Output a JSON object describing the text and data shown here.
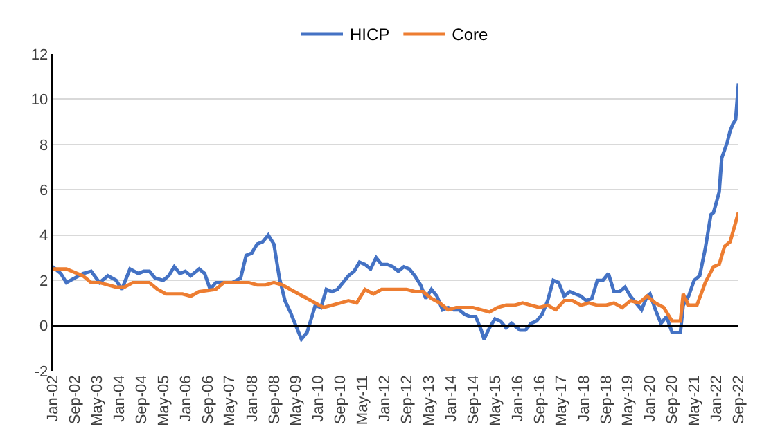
{
  "chart_data": {
    "type": "line",
    "xlim": [
      "2002-01",
      "2022-09"
    ],
    "xticks": [
      {
        "value": "2002-01",
        "label": "Jan-02"
      },
      {
        "value": "2002-09",
        "label": "Sep-02"
      },
      {
        "value": "2003-05",
        "label": "May-03"
      },
      {
        "value": "2004-01",
        "label": "Jan-04"
      },
      {
        "value": "2004-09",
        "label": "Sep-04"
      },
      {
        "value": "2005-05",
        "label": "May-05"
      },
      {
        "value": "2006-01",
        "label": "Jan-06"
      },
      {
        "value": "2006-09",
        "label": "Sep-06"
      },
      {
        "value": "2007-05",
        "label": "May-07"
      },
      {
        "value": "2008-01",
        "label": "Jan-08"
      },
      {
        "value": "2008-09",
        "label": "Sep-08"
      },
      {
        "value": "2009-05",
        "label": "May-09"
      },
      {
        "value": "2010-01",
        "label": "Jan-10"
      },
      {
        "value": "2010-09",
        "label": "Sep-10"
      },
      {
        "value": "2011-05",
        "label": "May-11"
      },
      {
        "value": "2012-01",
        "label": "Jan-12"
      },
      {
        "value": "2012-09",
        "label": "Sep-12"
      },
      {
        "value": "2013-05",
        "label": "May-13"
      },
      {
        "value": "2014-01",
        "label": "Jan-14"
      },
      {
        "value": "2014-09",
        "label": "Sep-14"
      },
      {
        "value": "2015-05",
        "label": "May-15"
      },
      {
        "value": "2016-01",
        "label": "Jan-16"
      },
      {
        "value": "2016-09",
        "label": "Sep-16"
      },
      {
        "value": "2017-05",
        "label": "May-17"
      },
      {
        "value": "2018-01",
        "label": "Jan-18"
      },
      {
        "value": "2018-09",
        "label": "Sep-18"
      },
      {
        "value": "2019-05",
        "label": "May-19"
      },
      {
        "value": "2020-01",
        "label": "Jan-20"
      },
      {
        "value": "2020-09",
        "label": "Sep-20"
      },
      {
        "value": "2021-05",
        "label": "May-21"
      },
      {
        "value": "2022-01",
        "label": "Jan-22"
      },
      {
        "value": "2022-09",
        "label": "Sep-22"
      }
    ],
    "ylim": [
      -2,
      12
    ],
    "yticks": [
      -2,
      0,
      2,
      4,
      6,
      8,
      10,
      12
    ],
    "grid": "y",
    "legend": "top",
    "marker": "none",
    "line_style": "solid",
    "ref_lines": [
      {
        "axis": "y",
        "value": 0,
        "color": "#000000"
      }
    ],
    "series": [
      {
        "name": "HICP",
        "color": "#4472c4",
        "x": [
          "2002-01",
          "2002-04",
          "2002-06",
          "2002-09",
          "2002-12",
          "2003-03",
          "2003-06",
          "2003-09",
          "2003-12",
          "2004-02",
          "2004-05",
          "2004-08",
          "2004-10",
          "2004-12",
          "2005-02",
          "2005-05",
          "2005-07",
          "2005-09",
          "2005-11",
          "2006-01",
          "2006-03",
          "2006-06",
          "2006-08",
          "2006-10",
          "2006-12",
          "2007-03",
          "2007-06",
          "2007-09",
          "2007-11",
          "2008-01",
          "2008-03",
          "2008-05",
          "2008-07",
          "2008-09",
          "2008-11",
          "2009-01",
          "2009-03",
          "2009-05",
          "2009-07",
          "2009-09",
          "2009-11",
          "2009-12",
          "2010-02",
          "2010-04",
          "2010-06",
          "2010-08",
          "2010-10",
          "2010-12",
          "2011-02",
          "2011-04",
          "2011-06",
          "2011-08",
          "2011-10",
          "2011-12",
          "2012-02",
          "2012-04",
          "2012-06",
          "2012-08",
          "2012-10",
          "2012-12",
          "2013-02",
          "2013-04",
          "2013-06",
          "2013-08",
          "2013-10",
          "2013-12",
          "2014-02",
          "2014-04",
          "2014-06",
          "2014-08",
          "2014-10",
          "2014-12",
          "2015-01",
          "2015-03",
          "2015-05",
          "2015-07",
          "2015-09",
          "2015-11",
          "2016-02",
          "2016-04",
          "2016-06",
          "2016-08",
          "2016-10",
          "2016-12",
          "2017-02",
          "2017-04",
          "2017-06",
          "2017-08",
          "2017-10",
          "2017-12",
          "2018-02",
          "2018-04",
          "2018-06",
          "2018-08",
          "2018-10",
          "2018-12",
          "2019-02",
          "2019-04",
          "2019-06",
          "2019-08",
          "2019-10",
          "2019-12",
          "2020-01",
          "2020-03",
          "2020-05",
          "2020-07",
          "2020-09",
          "2020-12",
          "2021-01",
          "2021-03",
          "2021-05",
          "2021-07",
          "2021-09",
          "2021-11",
          "2021-12",
          "2022-02",
          "2022-03",
          "2022-05",
          "2022-06",
          "2022-07",
          "2022-08",
          "2022-09"
        ],
        "values": [
          2.6,
          2.3,
          1.9,
          2.1,
          2.3,
          2.4,
          1.9,
          2.2,
          2.0,
          1.6,
          2.5,
          2.3,
          2.4,
          2.4,
          2.1,
          2.0,
          2.2,
          2.6,
          2.3,
          2.4,
          2.2,
          2.5,
          2.3,
          1.6,
          1.9,
          1.9,
          1.9,
          2.1,
          3.1,
          3.2,
          3.6,
          3.7,
          4.0,
          3.6,
          2.1,
          1.1,
          0.6,
          0.0,
          -0.6,
          -0.3,
          0.5,
          0.9,
          0.8,
          1.6,
          1.5,
          1.6,
          1.9,
          2.2,
          2.4,
          2.8,
          2.7,
          2.5,
          3.0,
          2.7,
          2.7,
          2.6,
          2.4,
          2.6,
          2.5,
          2.2,
          1.8,
          1.2,
          1.6,
          1.3,
          0.7,
          0.8,
          0.7,
          0.7,
          0.5,
          0.4,
          0.4,
          -0.2,
          -0.6,
          -0.1,
          0.3,
          0.2,
          -0.1,
          0.1,
          -0.2,
          -0.2,
          0.1,
          0.2,
          0.5,
          1.1,
          2.0,
          1.9,
          1.3,
          1.5,
          1.4,
          1.3,
          1.1,
          1.2,
          2.0,
          2.0,
          2.3,
          1.5,
          1.5,
          1.7,
          1.3,
          1.0,
          0.7,
          1.3,
          1.4,
          0.7,
          0.1,
          0.4,
          -0.3,
          -0.3,
          0.9,
          1.3,
          2.0,
          2.2,
          3.4,
          4.9,
          5.0,
          5.9,
          7.4,
          8.1,
          8.6,
          8.9,
          9.1,
          10.7
        ]
      },
      {
        "name": "Core",
        "color": "#ed7d31",
        "x": [
          "2002-01",
          "2002-06",
          "2002-12",
          "2003-03",
          "2003-06",
          "2003-12",
          "2004-03",
          "2004-06",
          "2004-12",
          "2005-03",
          "2005-06",
          "2005-12",
          "2006-03",
          "2006-06",
          "2006-12",
          "2007-03",
          "2007-06",
          "2007-12",
          "2008-03",
          "2008-06",
          "2008-09",
          "2008-12",
          "2009-03",
          "2009-06",
          "2009-09",
          "2009-12",
          "2010-03",
          "2010-06",
          "2010-09",
          "2010-12",
          "2011-03",
          "2011-06",
          "2011-09",
          "2011-12",
          "2012-03",
          "2012-06",
          "2012-09",
          "2012-12",
          "2013-03",
          "2013-06",
          "2013-09",
          "2013-12",
          "2014-03",
          "2014-06",
          "2014-09",
          "2014-12",
          "2015-03",
          "2015-06",
          "2015-09",
          "2015-12",
          "2016-03",
          "2016-06",
          "2016-09",
          "2016-12",
          "2017-03",
          "2017-06",
          "2017-09",
          "2017-12",
          "2018-03",
          "2018-06",
          "2018-09",
          "2018-12",
          "2019-03",
          "2019-06",
          "2019-09",
          "2019-12",
          "2020-03",
          "2020-06",
          "2020-08",
          "2020-09",
          "2020-12",
          "2021-01",
          "2021-03",
          "2021-06",
          "2021-09",
          "2021-12",
          "2022-02",
          "2022-04",
          "2022-06",
          "2022-09"
        ],
        "values": [
          2.5,
          2.5,
          2.2,
          1.9,
          1.9,
          1.7,
          1.7,
          1.9,
          1.9,
          1.6,
          1.4,
          1.4,
          1.3,
          1.5,
          1.6,
          1.9,
          1.9,
          1.9,
          1.8,
          1.8,
          1.9,
          1.8,
          1.6,
          1.4,
          1.2,
          1.0,
          0.8,
          0.9,
          1.0,
          1.1,
          1.0,
          1.6,
          1.4,
          1.6,
          1.6,
          1.6,
          1.6,
          1.5,
          1.5,
          1.2,
          1.0,
          0.7,
          0.8,
          0.8,
          0.8,
          0.7,
          0.6,
          0.8,
          0.9,
          0.9,
          1.0,
          0.9,
          0.8,
          0.9,
          0.7,
          1.1,
          1.1,
          0.9,
          1.0,
          0.9,
          0.9,
          1.0,
          0.8,
          1.1,
          1.0,
          1.3,
          1.0,
          0.8,
          0.4,
          0.2,
          0.2,
          1.4,
          0.9,
          0.9,
          1.9,
          2.6,
          2.7,
          3.5,
          3.7,
          5.0
        ]
      }
    ]
  }
}
